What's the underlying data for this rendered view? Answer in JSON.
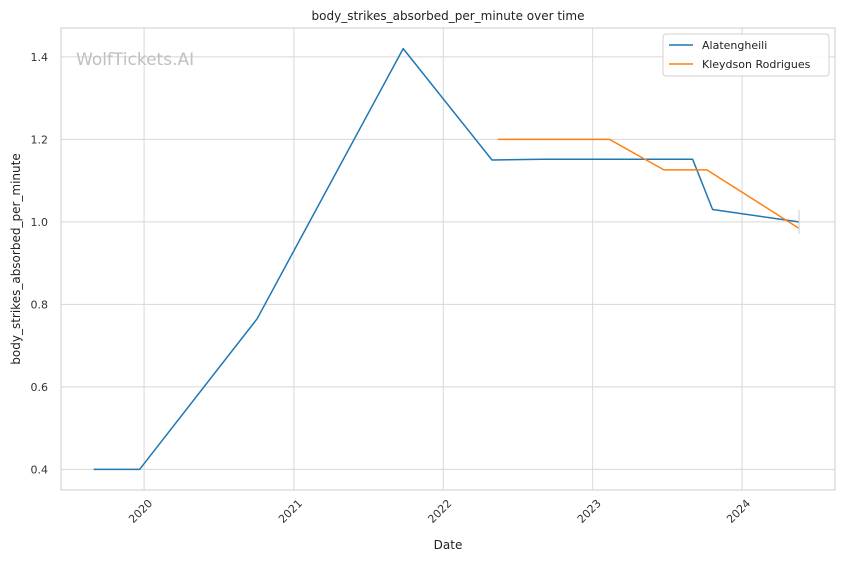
{
  "chart_data": {
    "type": "line",
    "title": "body_strikes_absorbed_per_minute over time",
    "xlabel": "Date",
    "ylabel": "body_strikes_absorbed_per_minute",
    "watermark": "WolfTickets.AI",
    "x_type": "date",
    "xlim": [
      "2019-06-12",
      "2024-08-15"
    ],
    "ylim": [
      0.35,
      1.47
    ],
    "x_ticks": [
      {
        "label": "2020",
        "date": "2020-01-01"
      },
      {
        "label": "2021",
        "date": "2021-01-01"
      },
      {
        "label": "2022",
        "date": "2022-01-01"
      },
      {
        "label": "2023",
        "date": "2023-01-01"
      },
      {
        "label": "2024",
        "date": "2024-01-01"
      }
    ],
    "y_ticks": [
      0.4,
      0.6,
      0.8,
      1.0,
      1.2,
      1.4
    ],
    "y_tick_labels": [
      "0.4",
      "0.6",
      "0.8",
      "1.0",
      "1.2",
      "1.4"
    ],
    "grid": true,
    "legend_position": "top-right",
    "series": [
      {
        "name": "Alatengheili",
        "color": "#1f77b4",
        "points": [
          {
            "x": "2019-08-31",
            "y": 0.4
          },
          {
            "x": "2019-12-21",
            "y": 0.4
          },
          {
            "x": "2020-10-03",
            "y": 0.765
          },
          {
            "x": "2021-09-25",
            "y": 1.42
          },
          {
            "x": "2022-04-30",
            "y": 1.15
          },
          {
            "x": "2022-09-01",
            "y": 1.152
          },
          {
            "x": "2023-09-02",
            "y": 1.152
          },
          {
            "x": "2023-10-21",
            "y": 1.03
          },
          {
            "x": "2024-05-18",
            "y": 1.0
          }
        ]
      },
      {
        "name": "Kleydson Rodrigues",
        "color": "#ff7f0e",
        "points": [
          {
            "x": "2022-05-14",
            "y": 1.2
          },
          {
            "x": "2023-02-11",
            "y": 1.2
          },
          {
            "x": "2023-06-24",
            "y": 1.126
          },
          {
            "x": "2023-10-07",
            "y": 1.126
          },
          {
            "x": "2024-05-18",
            "y": 0.985
          }
        ]
      }
    ]
  }
}
